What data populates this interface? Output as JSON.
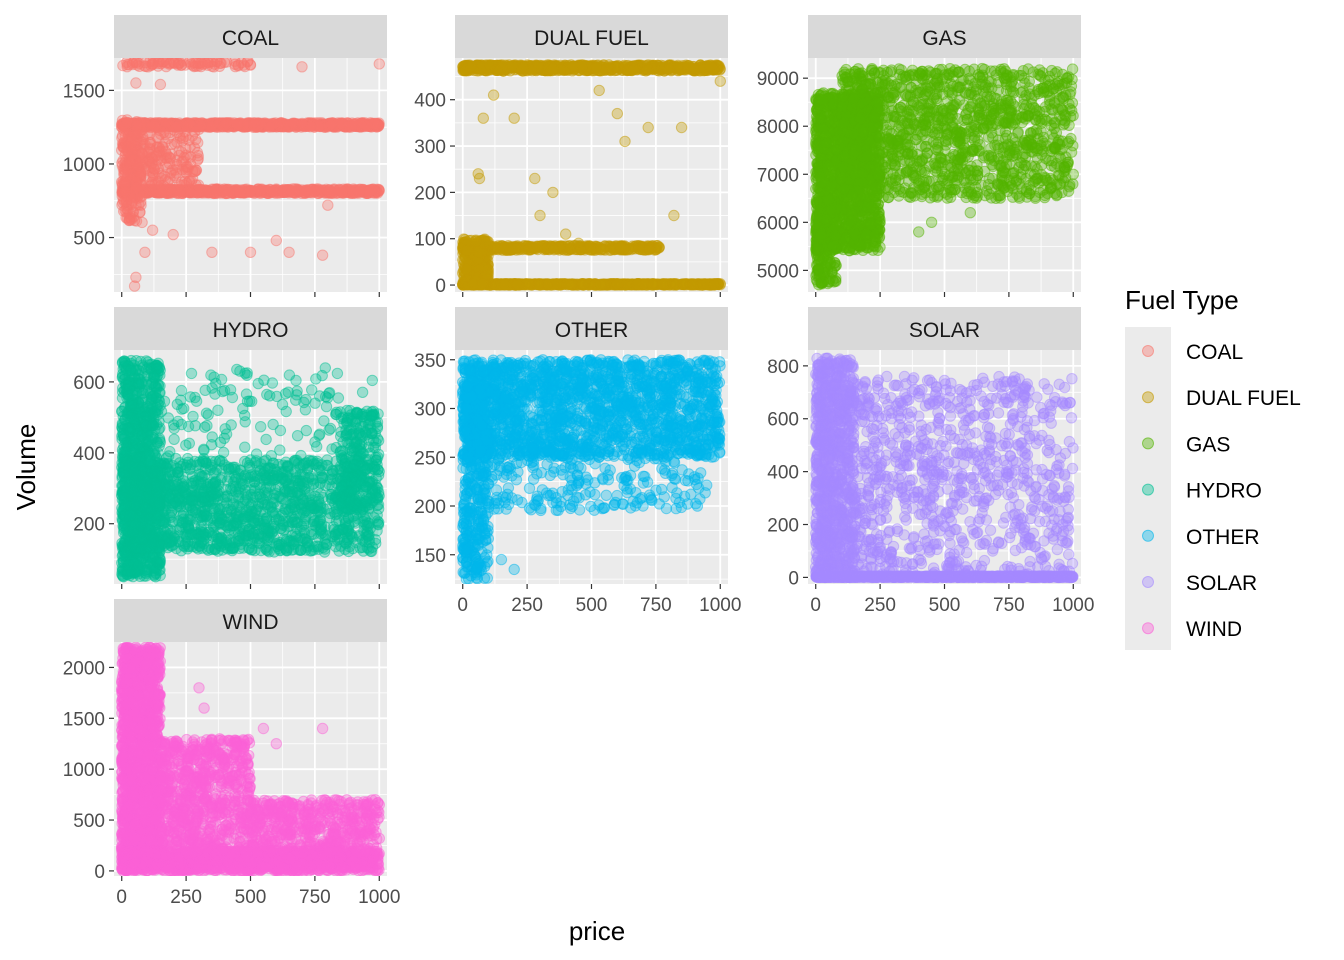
{
  "chart_data": {
    "type": "scatter",
    "xlabel": "price",
    "ylabel": "Volume",
    "legend": {
      "title": "Fuel Type",
      "placement": "right",
      "entries": [
        "COAL",
        "DUAL FUEL",
        "GAS",
        "HYDRO",
        "OTHER",
        "SOLAR",
        "WIND"
      ]
    },
    "x_ticks": [
      0,
      250,
      500,
      750,
      1000
    ],
    "xlim": [
      -30,
      1030
    ],
    "grid": true,
    "colors": {
      "COAL": "#F8766D",
      "DUAL FUEL": "#C49A00",
      "GAS": "#53B400",
      "HYDRO": "#00C094",
      "OTHER": "#00B6EB",
      "SOLAR": "#A58AFF",
      "WIND": "#FB61D7"
    },
    "panels": [
      {
        "name": "COAL",
        "ylim": [
          130,
          1720
        ],
        "y_ticks": [
          500,
          1000,
          1500
        ],
        "clusters": [
          {
            "x": [
              0,
              1000
            ],
            "y": [
              1250,
              1280
            ],
            "n": 700
          },
          {
            "x": [
              0,
              1000
            ],
            "y": [
              800,
              830
            ],
            "n": 600
          },
          {
            "x": [
              0,
              500
            ],
            "y": [
              1660,
              1700
            ],
            "n": 90
          },
          {
            "x": [
              0,
              300
            ],
            "y": [
              850,
              1250
            ],
            "n": 250
          },
          {
            "x": [
              0,
              80
            ],
            "y": [
              600,
              1300
            ],
            "n": 150
          }
        ],
        "points": [
          [
            50,
            170
          ],
          [
            55,
            230
          ],
          [
            90,
            400
          ],
          [
            200,
            520
          ],
          [
            350,
            400
          ],
          [
            500,
            400
          ],
          [
            650,
            400
          ],
          [
            780,
            380
          ],
          [
            600,
            480
          ],
          [
            120,
            550
          ],
          [
            800,
            720
          ],
          [
            55,
            1550
          ],
          [
            150,
            1540
          ],
          [
            1000,
            1680
          ],
          [
            700,
            1660
          ]
        ]
      },
      {
        "name": "DUAL FUEL",
        "ylim": [
          -15,
          490
        ],
        "y_ticks": [
          0,
          100,
          200,
          300,
          400
        ],
        "clusters": [
          {
            "x": [
              0,
              1000
            ],
            "y": [
              462,
              475
            ],
            "n": 700
          },
          {
            "x": [
              0,
              1000
            ],
            "y": [
              0,
              3
            ],
            "n": 500
          },
          {
            "x": [
              0,
              770
            ],
            "y": [
              75,
              85
            ],
            "n": 350
          },
          {
            "x": [
              0,
              100
            ],
            "y": [
              0,
              100
            ],
            "n": 300
          }
        ],
        "points": [
          [
            60,
            240
          ],
          [
            65,
            230
          ],
          [
            80,
            360
          ],
          [
            120,
            410
          ],
          [
            200,
            360
          ],
          [
            280,
            230
          ],
          [
            400,
            110
          ],
          [
            530,
            420
          ],
          [
            600,
            370
          ],
          [
            630,
            310
          ],
          [
            720,
            340
          ],
          [
            820,
            150
          ],
          [
            850,
            340
          ],
          [
            1000,
            440
          ],
          [
            300,
            150
          ],
          [
            350,
            200
          ],
          [
            450,
            90
          ]
        ]
      },
      {
        "name": "GAS",
        "ylim": [
          4550,
          9420
        ],
        "y_ticks": [
          5000,
          6000,
          7000,
          8000,
          9000
        ],
        "clusters": [
          {
            "x": [
              0,
              250
            ],
            "y": [
              5400,
              8700
            ],
            "n": 1300
          },
          {
            "x": [
              100,
              1000
            ],
            "y": [
              6500,
              9200
            ],
            "n": 1400
          },
          {
            "x": [
              0,
              80
            ],
            "y": [
              4700,
              6500
            ],
            "n": 200
          }
        ],
        "points": [
          [
            400,
            5800
          ],
          [
            450,
            6000
          ],
          [
            600,
            6200
          ],
          [
            700,
            6500
          ],
          [
            900,
            6600
          ],
          [
            800,
            6700
          ],
          [
            1000,
            7000
          ],
          [
            250,
            6000
          ]
        ]
      },
      {
        "name": "HYDRO",
        "ylim": [
          30,
          690
        ],
        "y_ticks": [
          200,
          400,
          600
        ],
        "clusters": [
          {
            "x": [
              0,
              1000
            ],
            "y": [
              120,
              380
            ],
            "n": 1500
          },
          {
            "x": [
              0,
              150
            ],
            "y": [
              50,
              660
            ],
            "n": 900
          },
          {
            "x": [
              150,
              1000
            ],
            "y": [
              380,
              640
            ],
            "n": 140
          },
          {
            "x": [
              850,
              1000
            ],
            "y": [
              250,
              520
            ],
            "n": 200
          }
        ],
        "points": []
      },
      {
        "name": "OTHER",
        "ylim": [
          120,
          360
        ],
        "y_ticks": [
          150,
          200,
          250,
          300,
          350
        ],
        "clusters": [
          {
            "x": [
              0,
              1000
            ],
            "y": [
              250,
              350
            ],
            "n": 1800
          },
          {
            "x": [
              0,
              100
            ],
            "y": [
              125,
              330
            ],
            "n": 400
          },
          {
            "x": [
              100,
              950
            ],
            "y": [
              195,
              260
            ],
            "n": 250
          }
        ],
        "points": [
          [
            200,
            135
          ],
          [
            150,
            145
          ],
          [
            550,
            198
          ],
          [
            700,
            200
          ],
          [
            900,
            230
          ]
        ]
      },
      {
        "name": "SOLAR",
        "ylim": [
          -25,
          860
        ],
        "y_ticks": [
          0,
          200,
          400,
          600,
          800
        ],
        "clusters": [
          {
            "x": [
              0,
              1000
            ],
            "y": [
              0,
              5
            ],
            "n": 900
          },
          {
            "x": [
              0,
              150
            ],
            "y": [
              0,
              830
            ],
            "n": 900
          },
          {
            "x": [
              150,
              1000
            ],
            "y": [
              0,
              760
            ],
            "n": 900
          }
        ],
        "points": []
      },
      {
        "name": "WIND",
        "ylim": [
          -50,
          2250
        ],
        "y_ticks": [
          0,
          500,
          1000,
          1500,
          2000
        ],
        "clusters": [
          {
            "x": [
              0,
              150
            ],
            "y": [
              0,
              2200
            ],
            "n": 1500
          },
          {
            "x": [
              150,
              500
            ],
            "y": [
              0,
              1300
            ],
            "n": 900
          },
          {
            "x": [
              500,
              1000
            ],
            "y": [
              0,
              700
            ],
            "n": 700
          },
          {
            "x": [
              0,
              1000
            ],
            "y": [
              0,
              200
            ],
            "n": 900
          }
        ],
        "points": [
          [
            300,
            1800
          ],
          [
            320,
            1600
          ],
          [
            550,
            1400
          ],
          [
            600,
            1250
          ],
          [
            780,
            1400
          ],
          [
            1000,
            650
          ]
        ]
      }
    ]
  }
}
